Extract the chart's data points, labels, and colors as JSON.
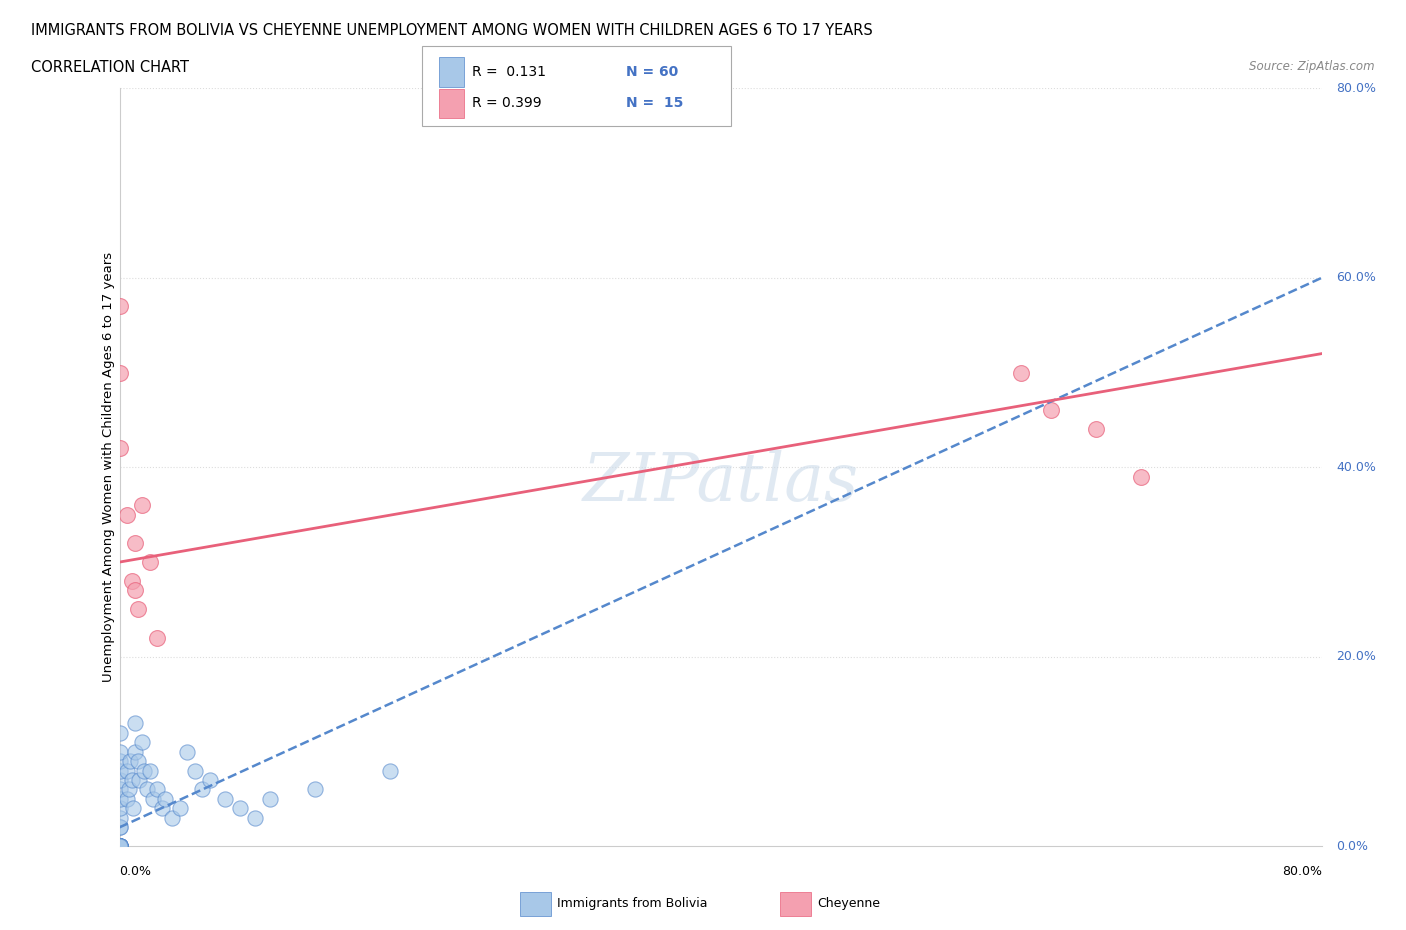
{
  "title_line1": "IMMIGRANTS FROM BOLIVIA VS CHEYENNE UNEMPLOYMENT AMONG WOMEN WITH CHILDREN AGES 6 TO 17 YEARS",
  "title_line2": "CORRELATION CHART",
  "source_text": "Source: ZipAtlas.com",
  "ylabel": "Unemployment Among Women with Children Ages 6 to 17 years",
  "legend_bottom_labels": [
    "Immigrants from Bolivia",
    "Cheyenne"
  ],
  "legend_R1": "R =  0.131",
  "legend_N1": "N = 60",
  "legend_R2": "R = 0.399",
  "legend_N2": "N =  15",
  "blue_color": "#a8c8e8",
  "pink_color": "#f4a0b0",
  "blue_line_color": "#5588cc",
  "pink_line_color": "#e8607a",
  "watermark_text": "ZIPatlas",
  "watermark_color": "#c8d8e8",
  "blue_scatter_x": [
    0.0,
    0.0,
    0.0,
    0.0,
    0.0,
    0.0,
    0.0,
    0.0,
    0.0,
    0.0,
    0.0,
    0.0,
    0.0,
    0.0,
    0.0,
    0.0,
    0.0,
    0.0,
    0.0,
    0.0,
    0.0,
    0.0,
    0.0,
    0.0,
    0.0,
    0.0,
    0.0,
    0.0,
    0.0,
    0.0,
    0.005,
    0.005,
    0.006,
    0.007,
    0.008,
    0.009,
    0.01,
    0.01,
    0.012,
    0.013,
    0.015,
    0.016,
    0.018,
    0.02,
    0.022,
    0.025,
    0.028,
    0.03,
    0.035,
    0.04,
    0.045,
    0.05,
    0.055,
    0.06,
    0.07,
    0.08,
    0.09,
    0.1,
    0.13,
    0.18
  ],
  "blue_scatter_y": [
    0.0,
    0.0,
    0.0,
    0.0,
    0.0,
    0.0,
    0.0,
    0.0,
    0.0,
    0.0,
    0.0,
    0.0,
    0.0,
    0.0,
    0.0,
    0.0,
    0.0,
    0.0,
    0.0,
    0.02,
    0.02,
    0.03,
    0.04,
    0.05,
    0.06,
    0.07,
    0.08,
    0.09,
    0.1,
    0.12,
    0.05,
    0.08,
    0.06,
    0.09,
    0.07,
    0.04,
    0.13,
    0.1,
    0.09,
    0.07,
    0.11,
    0.08,
    0.06,
    0.08,
    0.05,
    0.06,
    0.04,
    0.05,
    0.03,
    0.04,
    0.1,
    0.08,
    0.06,
    0.07,
    0.05,
    0.04,
    0.03,
    0.05,
    0.06,
    0.08
  ],
  "pink_scatter_x": [
    0.0,
    0.0,
    0.0,
    0.005,
    0.008,
    0.01,
    0.01,
    0.012,
    0.015,
    0.02,
    0.025,
    0.6,
    0.62,
    0.65,
    0.68
  ],
  "pink_scatter_y": [
    0.5,
    0.42,
    0.57,
    0.35,
    0.28,
    0.27,
    0.32,
    0.25,
    0.36,
    0.3,
    0.22,
    0.5,
    0.46,
    0.44,
    0.39
  ],
  "xlim": [
    0.0,
    0.8
  ],
  "ylim": [
    0.0,
    0.8
  ],
  "xtick_vals": [
    0.0,
    0.1,
    0.2,
    0.3,
    0.4,
    0.5,
    0.6,
    0.7,
    0.8
  ],
  "ytick_vals": [
    0.0,
    0.2,
    0.4,
    0.6,
    0.8
  ],
  "right_tick_labels": [
    "0.0%",
    "20.0%",
    "40.0%",
    "60.0%",
    "80.0%"
  ],
  "bottom_tick_labels": [
    "0.0%",
    "80.0%"
  ],
  "grid_yticks": [
    0.2,
    0.4,
    0.6,
    0.8
  ],
  "grid_color": "#dddddd",
  "background_color": "#ffffff",
  "blue_trend_start_y": 0.02,
  "blue_trend_end_y": 0.6,
  "pink_trend_start_y": 0.3,
  "pink_trend_end_y": 0.52
}
